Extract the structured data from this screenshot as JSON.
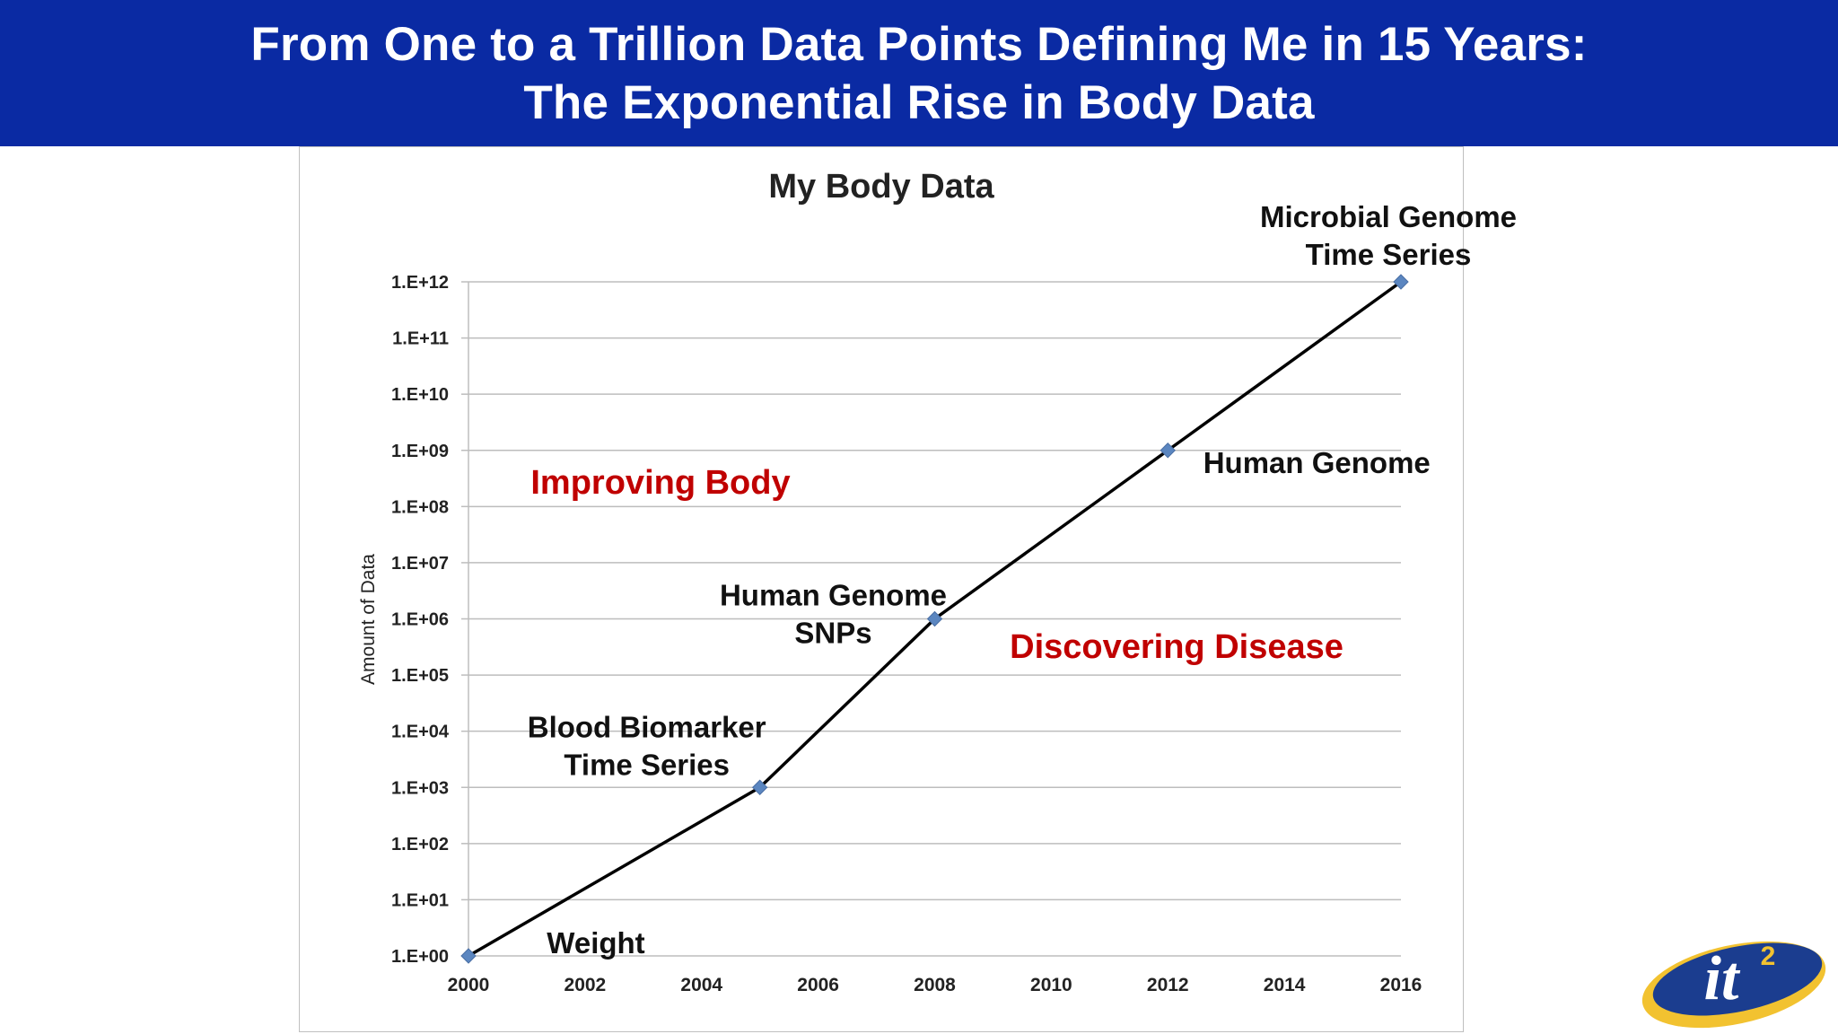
{
  "header": {
    "title_line1": "From One to a Trillion Data Points Defining Me in 15 Years:",
    "title_line2": "The Exponential Rise in Body Data",
    "background_color": "#0a2aa3"
  },
  "logo": {
    "text": "it",
    "superscript": "2",
    "icon": "it2-logo"
  },
  "chart_data": {
    "type": "line",
    "title": "My Body Data",
    "xlabel": "",
    "ylabel": "Amount of Data",
    "y_scale": "log",
    "xlim": [
      2000,
      2016
    ],
    "ylim": [
      1,
      1000000000000
    ],
    "x_ticks": [
      "2000",
      "2002",
      "2004",
      "2006",
      "2008",
      "2010",
      "2012",
      "2014",
      "2016"
    ],
    "y_ticks": [
      "1.E+00",
      "1.E+01",
      "1.E+02",
      "1.E+03",
      "1.E+04",
      "1.E+05",
      "1.E+06",
      "1.E+07",
      "1.E+08",
      "1.E+09",
      "1.E+10",
      "1.E+11",
      "1.E+12"
    ],
    "grid": true,
    "legend": "none",
    "series": [
      {
        "x": [
          2000,
          2005,
          2008,
          2012,
          2016
        ],
        "y": [
          1,
          1000,
          1000000,
          1000000000,
          1000000000000
        ],
        "line_color": "#000000",
        "marker_color": "#5b86c0"
      }
    ],
    "point_labels": [
      {
        "lines": [
          "Weight"
        ],
        "x": 2000,
        "y": 1
      },
      {
        "lines": [
          "Blood Biomarker",
          "Time Series"
        ],
        "x": 2005,
        "y": 1000
      },
      {
        "lines": [
          "Human Genome",
          "SNPs"
        ],
        "x": 2008,
        "y": 1000000
      },
      {
        "lines": [
          "Human Genome"
        ],
        "x": 2012,
        "y": 1000000000
      },
      {
        "lines": [
          "Microbial Genome",
          "Time Series"
        ],
        "x": 2016,
        "y": 1000000000000
      }
    ],
    "annotations": [
      {
        "text": "Improving Body",
        "color": "#c00000"
      },
      {
        "text": "Discovering Disease",
        "color": "#c00000"
      }
    ]
  }
}
